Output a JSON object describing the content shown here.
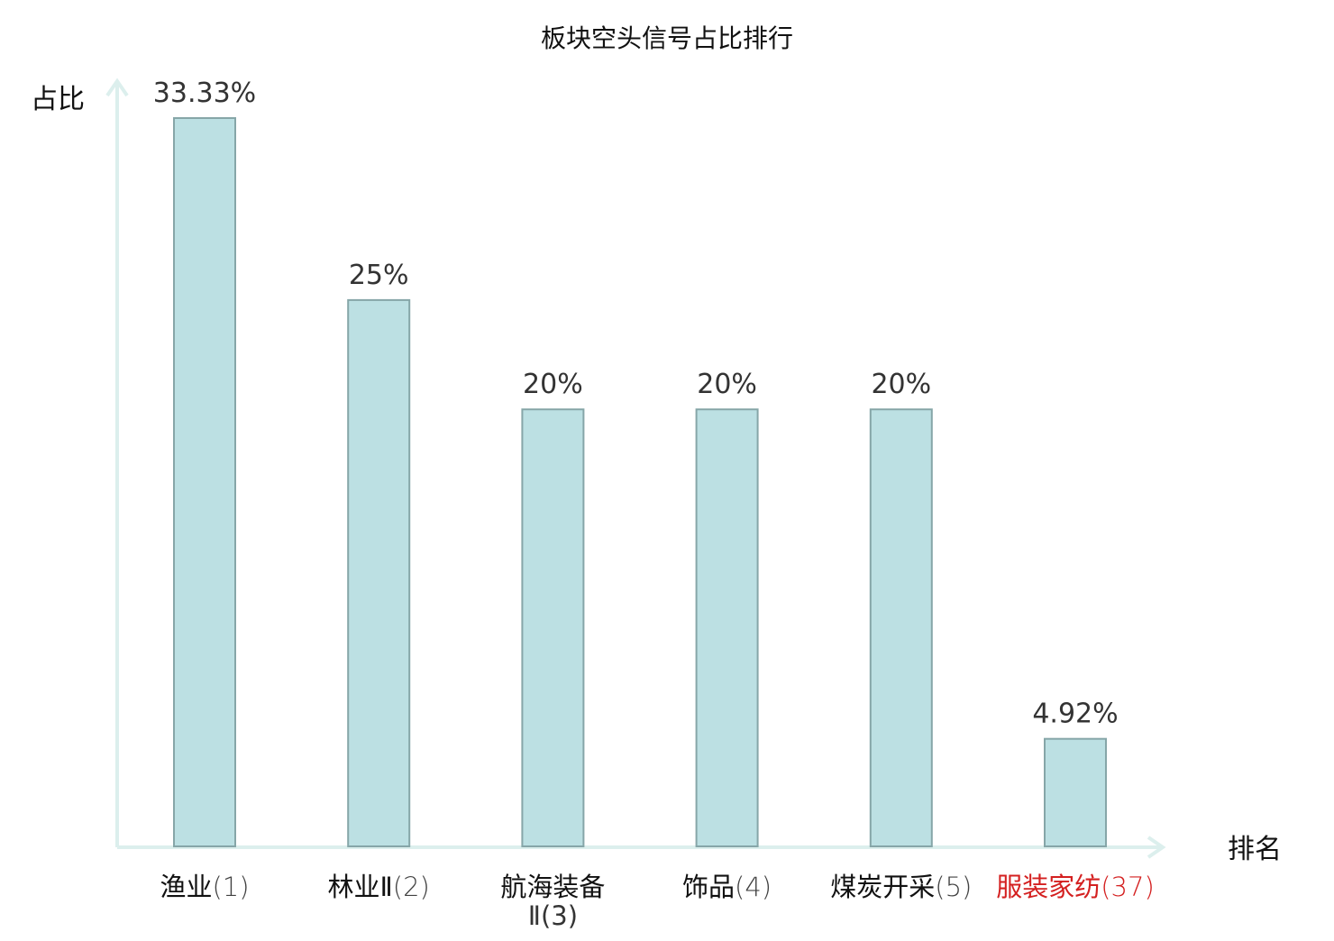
{
  "chart_data": {
    "type": "bar",
    "title": "板块空头信号占比排行",
    "ylabel": "占比",
    "xlabel": "排名",
    "ylim": [
      0,
      35
    ],
    "grid": false,
    "categories": [
      {
        "name": "渔业",
        "rank": "(1)",
        "highlight": false
      },
      {
        "name": "林业Ⅱ",
        "rank": "(2)",
        "highlight": false
      },
      {
        "name": "航海装备",
        "name_line2": "Ⅱ(3)",
        "rank": "",
        "highlight": false
      },
      {
        "name": "饰品",
        "rank": "(4)",
        "highlight": false
      },
      {
        "name": "煤炭开采",
        "rank": "(5)",
        "highlight": false
      },
      {
        "name": "服装家纺",
        "rank": "(37)",
        "highlight": true
      }
    ],
    "values": [
      33.33,
      25,
      20,
      20,
      20,
      4.92
    ],
    "value_labels": [
      "33.33%",
      "25%",
      "20%",
      "20%",
      "20%",
      "4.92%"
    ]
  },
  "colors": {
    "bar_fill": "#bce0e3",
    "bar_stroke": "#86a6a8",
    "axis": "#dcefed",
    "text": "#333333",
    "label_text": "#111111",
    "highlight": "#d42020"
  }
}
